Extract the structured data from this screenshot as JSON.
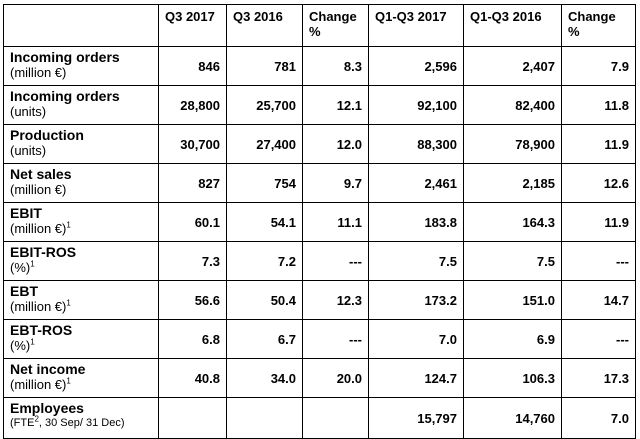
{
  "headers": [
    "",
    "Q3 2017",
    "Q3 2016",
    "Change %",
    "Q1-Q3 2017",
    "Q1-Q3 2016",
    "Change %"
  ],
  "rows": [
    {
      "label": "Incoming orders",
      "sub": "(million €)",
      "sup": "",
      "sub_after": "",
      "values": [
        "846",
        "781",
        "8.3",
        "2,596",
        "2,407",
        "7.9"
      ]
    },
    {
      "label": "Incoming orders",
      "sub": "(units)",
      "sup": "",
      "sub_after": "",
      "values": [
        "28,800",
        "25,700",
        "12.1",
        "92,100",
        "82,400",
        "11.8"
      ]
    },
    {
      "label": "Production",
      "sub": "(units)",
      "sup": "",
      "sub_after": "",
      "values": [
        "30,700",
        "27,400",
        "12.0",
        "88,300",
        "78,900",
        "11.9"
      ]
    },
    {
      "label": "Net sales",
      "sub": "(million €)",
      "sup": "",
      "sub_after": "",
      "values": [
        "827",
        "754",
        "9.7",
        "2,461",
        "2,185",
        "12.6"
      ]
    },
    {
      "label": "EBIT",
      "sub": "(million €)",
      "sup": "1",
      "sub_after": "",
      "values": [
        "60.1",
        "54.1",
        "11.1",
        "183.8",
        "164.3",
        "11.9"
      ]
    },
    {
      "label": "EBIT-ROS",
      "sub": "(%)",
      "sup": "1",
      "sub_after": "",
      "values": [
        "7.3",
        "7.2",
        "---",
        "7.5",
        "7.5",
        "---"
      ]
    },
    {
      "label": "EBT",
      "sub": "(million €)",
      "sup": "1",
      "sub_after": "",
      "values": [
        "56.6",
        "50.4",
        "12.3",
        "173.2",
        "151.0",
        "14.7"
      ]
    },
    {
      "label": "EBT-ROS",
      "sub": "(%)",
      "sup": "1",
      "sub_after": "",
      "values": [
        "6.8",
        "6.7",
        "---",
        "7.0",
        "6.9",
        "---"
      ]
    },
    {
      "label": "Net income",
      "sub": "(million €)",
      "sup": "1",
      "sub_after": "",
      "values": [
        "40.8",
        "34.0",
        "20.0",
        "124.7",
        "106.3",
        "17.3"
      ]
    },
    {
      "label": "Employees",
      "sub": "(FTE",
      "sup": "2",
      "sub_after": ", 30 Sep/ 31 Dec)",
      "values": [
        "",
        "",
        "",
        "15,797",
        "14,760",
        "7.0"
      ]
    }
  ]
}
